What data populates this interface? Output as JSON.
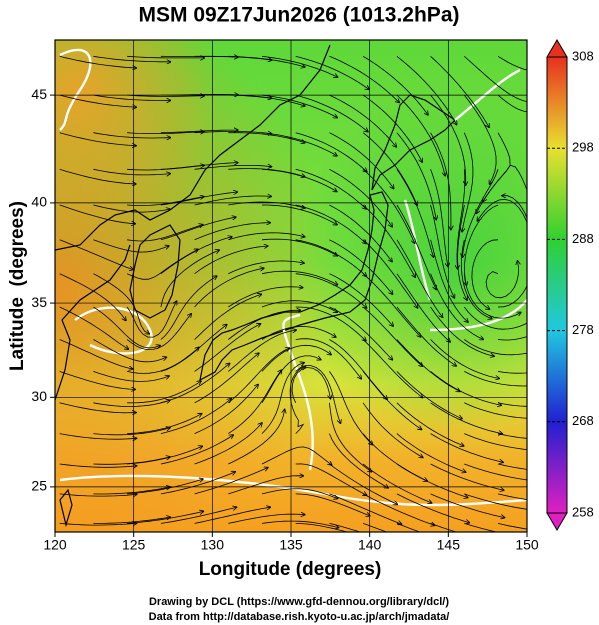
{
  "title": "MSM 09Z17Jun2026 (1013.2hPa)",
  "x_axis": {
    "label": "Longitude (degrees)",
    "lim": [
      120,
      150
    ],
    "ticks": [
      120,
      125,
      130,
      135,
      140,
      145,
      150
    ]
  },
  "y_axis": {
    "label": "Latitude  (degrees)",
    "lim": [
      22.4,
      47.4
    ],
    "ticks": [
      25,
      30,
      35,
      40,
      45
    ],
    "scale": "mercator"
  },
  "colorbar": {
    "lim": [
      258,
      308
    ],
    "ticks": [
      258,
      268,
      278,
      288,
      298,
      308
    ]
  },
  "credits": [
    "Drawing by DCL (https://www.gfd-dennou.org/library/dcl/)",
    "Data from http://database.rish.kyoto-u.ac.jp/arch/jmadata/"
  ]
}
